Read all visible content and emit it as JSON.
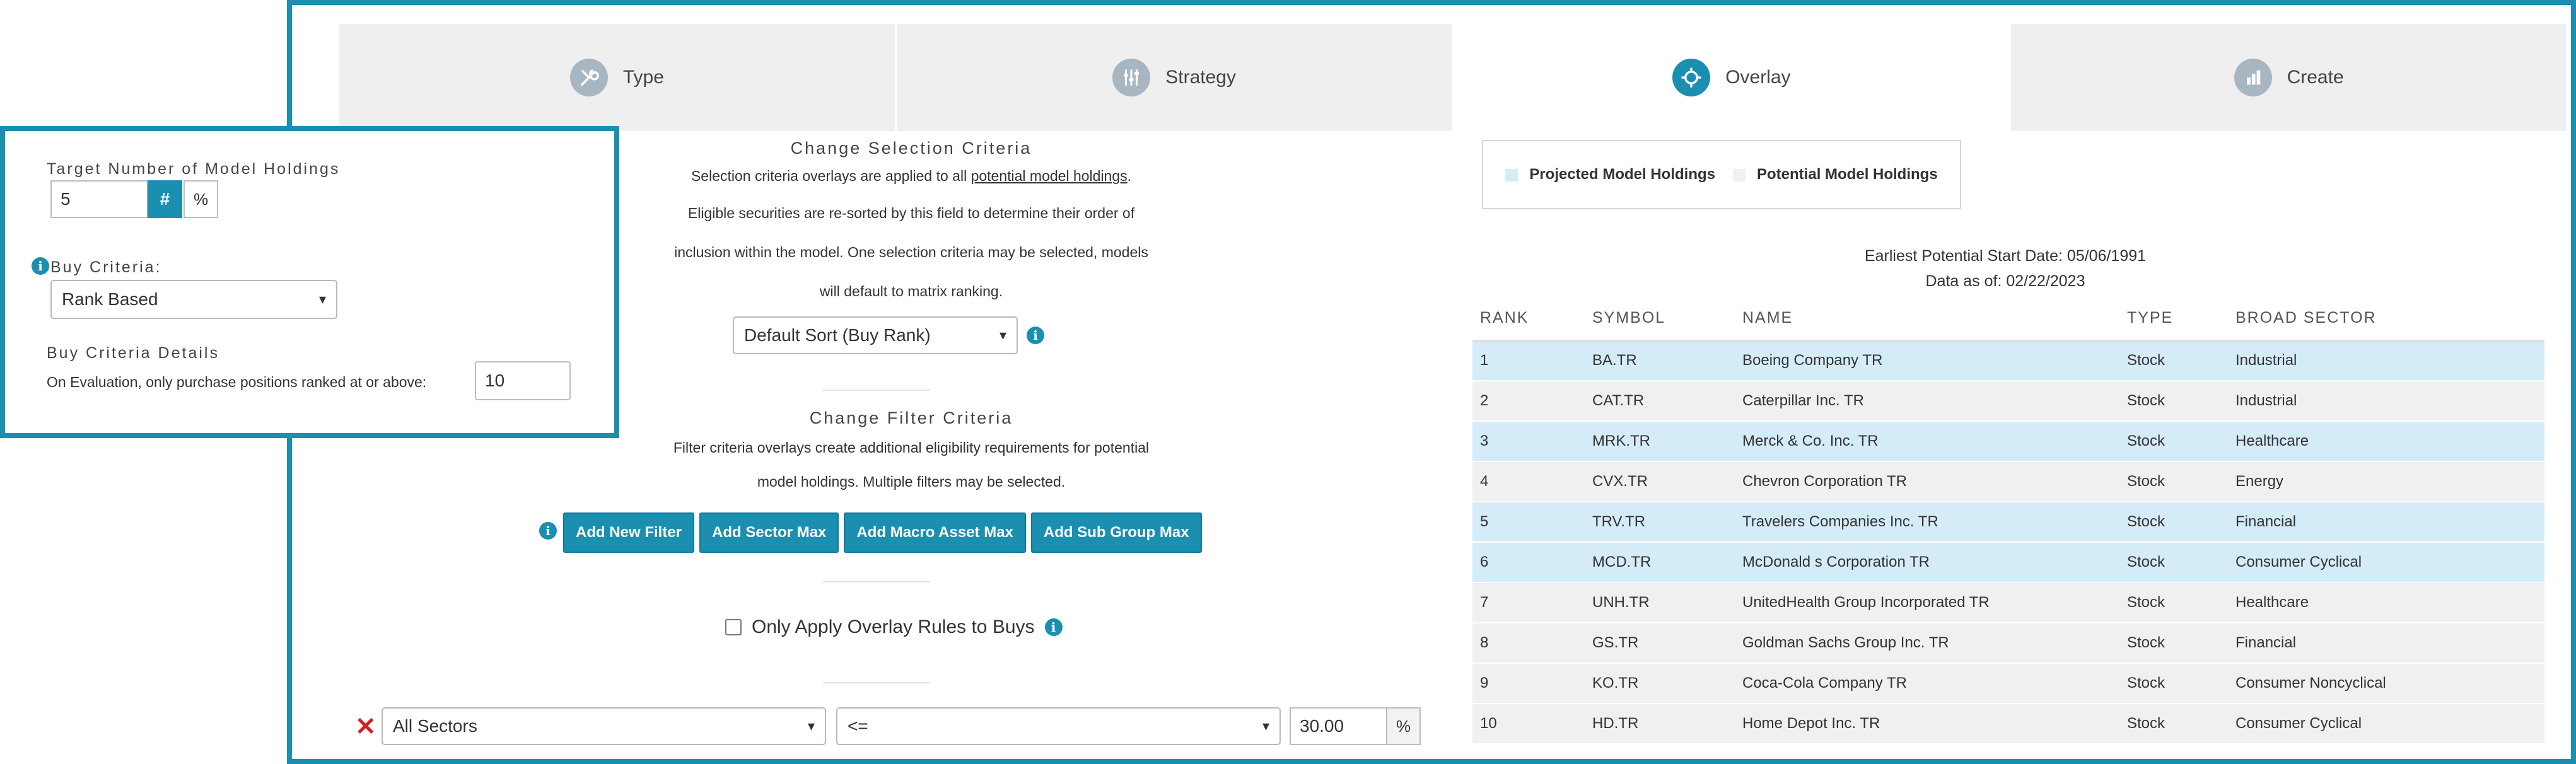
{
  "tabs": [
    {
      "label": "Type",
      "icon": "tools-icon"
    },
    {
      "label": "Strategy",
      "icon": "sliders-icon"
    },
    {
      "label": "Overlay",
      "icon": "overlay-icon"
    },
    {
      "label": "Create",
      "icon": "bar-chart-icon"
    }
  ],
  "active_tab": "Overlay",
  "selection": {
    "title": "Change Selection Criteria",
    "line1_pre": "Selection criteria overlays are applied to all ",
    "line1_link": "potential model holdings",
    "line1_post": ".",
    "line2": "Eligible securities are re-sorted by this field to determine their order of",
    "line3": "inclusion within the model. One selection criteria may be selected, models",
    "line4": "will default to matrix ranking.",
    "sort_value": "Default Sort (Buy Rank)"
  },
  "filter": {
    "title": "Change Filter Criteria",
    "line1": "Filter criteria overlays create additional eligibility requirements for potential",
    "line2": "model holdings. Multiple filters may be selected.",
    "buttons": [
      "Add New Filter",
      "Add Sector Max",
      "Add Macro Asset Max",
      "Add Sub Group Max"
    ],
    "only_buys_label": "Only Apply Overlay Rules to Buys",
    "only_buys_checked": false,
    "row": {
      "sector": "All Sectors",
      "operator": "<=",
      "value": "30.00",
      "unit": "%"
    }
  },
  "legend": {
    "projected": "Projected Model Holdings",
    "potential": "Potential Model Holdings",
    "projected_color": "#d4ecf7",
    "potential_color": "#f0f0f0"
  },
  "meta": {
    "start_date": "Earliest Potential Start Date: 05/06/1991",
    "as_of": "Data as of: 02/22/2023"
  },
  "table": {
    "headers": [
      "RANK",
      "SYMBOL",
      "NAME",
      "TYPE",
      "BROAD SECTOR"
    ],
    "rows": [
      {
        "rank": "1",
        "symbol": "BA.TR",
        "name": "Boeing Company TR",
        "type": "Stock",
        "sector": "Industrial",
        "projected": true
      },
      {
        "rank": "2",
        "symbol": "CAT.TR",
        "name": "Caterpillar Inc. TR",
        "type": "Stock",
        "sector": "Industrial",
        "projected": false
      },
      {
        "rank": "3",
        "symbol": "MRK.TR",
        "name": "Merck & Co. Inc. TR",
        "type": "Stock",
        "sector": "Healthcare",
        "projected": true
      },
      {
        "rank": "4",
        "symbol": "CVX.TR",
        "name": "Chevron Corporation TR",
        "type": "Stock",
        "sector": "Energy",
        "projected": false
      },
      {
        "rank": "5",
        "symbol": "TRV.TR",
        "name": "Travelers Companies Inc. TR",
        "type": "Stock",
        "sector": "Financial",
        "projected": true
      },
      {
        "rank": "6",
        "symbol": "MCD.TR",
        "name": "McDonald s Corporation TR",
        "type": "Stock",
        "sector": "Consumer Cyclical",
        "projected": true
      },
      {
        "rank": "7",
        "symbol": "UNH.TR",
        "name": "UnitedHealth Group Incorporated TR",
        "type": "Stock",
        "sector": "Healthcare",
        "projected": false
      },
      {
        "rank": "8",
        "symbol": "GS.TR",
        "name": "Goldman Sachs Group Inc. TR",
        "type": "Stock",
        "sector": "Financial",
        "projected": false
      },
      {
        "rank": "9",
        "symbol": "KO.TR",
        "name": "Coca-Cola Company TR",
        "type": "Stock",
        "sector": "Consumer Noncyclical",
        "projected": false
      },
      {
        "rank": "10",
        "symbol": "HD.TR",
        "name": "Home Depot Inc. TR",
        "type": "Stock",
        "sector": "Consumer Cyclical",
        "projected": false
      }
    ]
  },
  "overlay_box": {
    "target_label": "Target Number of Model Holdings",
    "target_value": "5",
    "hash_label": "#",
    "pct_label": "%",
    "buy_criteria_label": "Buy Criteria:",
    "buy_criteria_value": "Rank Based",
    "details_label": "Buy Criteria Details",
    "details_text": "On Evaluation, only purchase positions ranked at or above:",
    "details_value": "10"
  }
}
